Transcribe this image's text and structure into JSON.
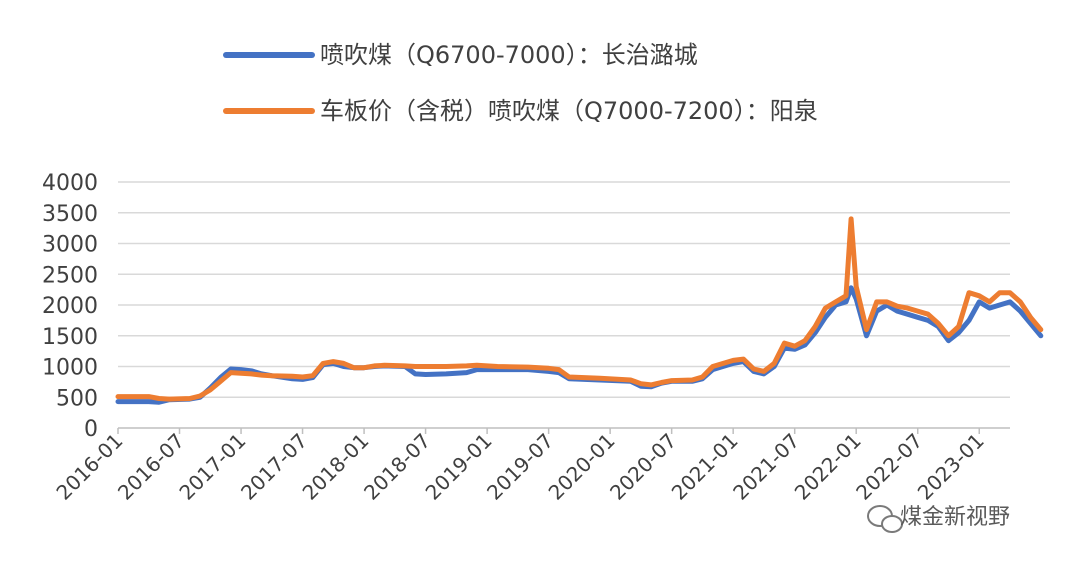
{
  "chart_data": {
    "type": "line",
    "title": "",
    "xlabel": "",
    "ylabel": "",
    "ylim": [
      0,
      4000
    ],
    "yticks": [
      0,
      500,
      1000,
      1500,
      2000,
      2500,
      3000,
      3500,
      4000
    ],
    "xticks": [
      "2016-01",
      "2016-07",
      "2017-01",
      "2017-07",
      "2018-01",
      "2018-07",
      "2019-01",
      "2019-07",
      "2020-01",
      "2020-07",
      "2021-01",
      "2021-07",
      "2022-01",
      "2022-07",
      "2023-01"
    ],
    "x_end": "2023-04",
    "grid": "horizontal",
    "legend_position": "top",
    "series": [
      {
        "name": "喷吹煤（Q6700-7000）：长治潞城",
        "color": "#4472C4",
        "points": [
          [
            "2016-01",
            430
          ],
          [
            "2016-04",
            430
          ],
          [
            "2016-05",
            420
          ],
          [
            "2016-06",
            460
          ],
          [
            "2016-08",
            470
          ],
          [
            "2016-09",
            500
          ],
          [
            "2016-10",
            650
          ],
          [
            "2016-11",
            820
          ],
          [
            "2016-12",
            960
          ],
          [
            "2017-01",
            950
          ],
          [
            "2017-02",
            930
          ],
          [
            "2017-03",
            880
          ],
          [
            "2017-04",
            850
          ],
          [
            "2017-06",
            800
          ],
          [
            "2017-07",
            790
          ],
          [
            "2017-08",
            820
          ],
          [
            "2017-09",
            1030
          ],
          [
            "2017-10",
            1050
          ],
          [
            "2017-11",
            1000
          ],
          [
            "2017-12",
            980
          ],
          [
            "2018-01",
            980
          ],
          [
            "2018-02",
            1000
          ],
          [
            "2018-03",
            1010
          ],
          [
            "2018-05",
            1000
          ],
          [
            "2018-06",
            880
          ],
          [
            "2018-07",
            870
          ],
          [
            "2018-09",
            880
          ],
          [
            "2018-11",
            900
          ],
          [
            "2018-12",
            950
          ],
          [
            "2019-02",
            950
          ],
          [
            "2019-05",
            950
          ],
          [
            "2019-07",
            920
          ],
          [
            "2019-08",
            900
          ],
          [
            "2019-09",
            800
          ],
          [
            "2019-12",
            780
          ],
          [
            "2020-03",
            760
          ],
          [
            "2020-04",
            680
          ],
          [
            "2020-05",
            670
          ],
          [
            "2020-06",
            730
          ],
          [
            "2020-07",
            760
          ],
          [
            "2020-09",
            760
          ],
          [
            "2020-10",
            800
          ],
          [
            "2020-11",
            950
          ],
          [
            "2021-01",
            1050
          ],
          [
            "2021-02",
            1080
          ],
          [
            "2021-03",
            920
          ],
          [
            "2021-04",
            880
          ],
          [
            "2021-05",
            1000
          ],
          [
            "2021-06",
            1300
          ],
          [
            "2021-07",
            1280
          ],
          [
            "2021-08",
            1350
          ],
          [
            "2021-09",
            1550
          ],
          [
            "2021-10",
            1800
          ],
          [
            "2021-11",
            2000
          ],
          [
            "2021-12",
            2050
          ],
          [
            "2021-12",
            2280
          ],
          [
            "2022-01",
            2100
          ],
          [
            "2022-02",
            1500
          ],
          [
            "2022-03",
            1900
          ],
          [
            "2022-04",
            2000
          ],
          [
            "2022-05",
            1900
          ],
          [
            "2022-06",
            1850
          ],
          [
            "2022-07",
            1800
          ],
          [
            "2022-08",
            1750
          ],
          [
            "2022-09",
            1650
          ],
          [
            "2022-10",
            1420
          ],
          [
            "2022-11",
            1550
          ],
          [
            "2022-12",
            1750
          ],
          [
            "2023-01",
            2050
          ],
          [
            "2023-02",
            1950
          ],
          [
            "2023-03",
            2000
          ],
          [
            "2023-04",
            2050
          ],
          [
            "2023-05",
            1900
          ],
          [
            "2023-06",
            1700
          ],
          [
            "2023-07",
            1500
          ]
        ]
      },
      {
        "name": "车板价（含税）喷吹煤（Q7000-7200）：阳泉",
        "color": "#ED7D31",
        "points": [
          [
            "2016-01",
            510
          ],
          [
            "2016-04",
            510
          ],
          [
            "2016-05",
            480
          ],
          [
            "2016-06",
            470
          ],
          [
            "2016-08",
            480
          ],
          [
            "2016-09",
            520
          ],
          [
            "2016-10",
            620
          ],
          [
            "2016-11",
            760
          ],
          [
            "2016-12",
            900
          ],
          [
            "2017-01",
            890
          ],
          [
            "2017-02",
            880
          ],
          [
            "2017-03",
            860
          ],
          [
            "2017-04",
            850
          ],
          [
            "2017-06",
            840
          ],
          [
            "2017-07",
            830
          ],
          [
            "2017-08",
            850
          ],
          [
            "2017-09",
            1050
          ],
          [
            "2017-10",
            1080
          ],
          [
            "2017-11",
            1050
          ],
          [
            "2017-12",
            980
          ],
          [
            "2018-01",
            980
          ],
          [
            "2018-02",
            1010
          ],
          [
            "2018-03",
            1020
          ],
          [
            "2018-05",
            1010
          ],
          [
            "2018-06",
            1000
          ],
          [
            "2018-07",
            1000
          ],
          [
            "2018-09",
            1000
          ],
          [
            "2018-11",
            1010
          ],
          [
            "2018-12",
            1020
          ],
          [
            "2019-02",
            1000
          ],
          [
            "2019-05",
            990
          ],
          [
            "2019-07",
            970
          ],
          [
            "2019-08",
            950
          ],
          [
            "2019-09",
            830
          ],
          [
            "2019-12",
            810
          ],
          [
            "2020-03",
            780
          ],
          [
            "2020-04",
            720
          ],
          [
            "2020-05",
            700
          ],
          [
            "2020-06",
            740
          ],
          [
            "2020-07",
            770
          ],
          [
            "2020-09",
            780
          ],
          [
            "2020-10",
            830
          ],
          [
            "2020-11",
            1000
          ],
          [
            "2021-01",
            1100
          ],
          [
            "2021-02",
            1120
          ],
          [
            "2021-03",
            960
          ],
          [
            "2021-04",
            920
          ],
          [
            "2021-05",
            1050
          ],
          [
            "2021-06",
            1380
          ],
          [
            "2021-07",
            1330
          ],
          [
            "2021-08",
            1420
          ],
          [
            "2021-09",
            1650
          ],
          [
            "2021-10",
            1950
          ],
          [
            "2021-11",
            2050
          ],
          [
            "2021-12",
            2150
          ],
          [
            "2021-12",
            3400
          ],
          [
            "2022-01",
            2300
          ],
          [
            "2022-02",
            1600
          ],
          [
            "2022-03",
            2050
          ],
          [
            "2022-04",
            2050
          ],
          [
            "2022-05",
            1980
          ],
          [
            "2022-06",
            1950
          ],
          [
            "2022-07",
            1900
          ],
          [
            "2022-08",
            1850
          ],
          [
            "2022-09",
            1700
          ],
          [
            "2022-10",
            1500
          ],
          [
            "2022-11",
            1650
          ],
          [
            "2022-12",
            2200
          ],
          [
            "2023-01",
            2150
          ],
          [
            "2023-02",
            2050
          ],
          [
            "2023-03",
            2200
          ],
          [
            "2023-04",
            2200
          ],
          [
            "2023-05",
            2050
          ],
          [
            "2023-06",
            1800
          ],
          [
            "2023-07",
            1600
          ]
        ]
      }
    ]
  },
  "watermark": {
    "text": "煤金新视野",
    "icon": "wechat-icon"
  }
}
